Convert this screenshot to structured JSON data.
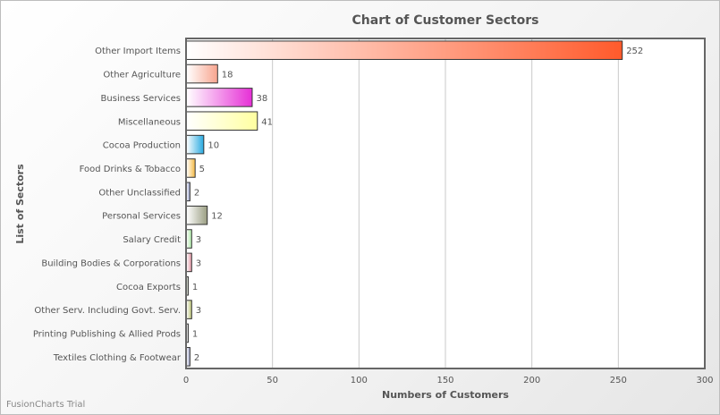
{
  "chart_data": {
    "type": "bar",
    "orientation": "horizontal",
    "title": "Chart of Customer Sectors",
    "xlabel": "Numbers of Customers",
    "ylabel": "List of Sectors",
    "xlim": [
      0,
      300
    ],
    "ticks": [
      0,
      50,
      100,
      150,
      200,
      250,
      300
    ],
    "grid": true,
    "categories": [
      "Other Import Items",
      "Other Agriculture",
      "Business Services",
      "Miscellaneous",
      "Cocoa Production",
      "Food Drinks & Tobacco",
      "Other Unclassified",
      "Personal Services",
      "Salary Credit",
      "Building Bodies & Corporations",
      "Cocoa Exports",
      "Other Serv. Including Govt. Serv.",
      "Printing Publishing & Allied Prods",
      "Textiles Clothing & Footwear"
    ],
    "values": [
      252,
      18,
      38,
      41,
      10,
      5,
      2,
      12,
      3,
      3,
      1,
      3,
      1,
      2
    ],
    "colors": [
      "#FF5A2B",
      "#F8A48E",
      "#E62FD6",
      "#FFFFA0",
      "#27A9E0",
      "#F5B942",
      "#8D96C6",
      "#9A9E82",
      "#A8E6A0",
      "#E0909E",
      "#A6B09A",
      "#B8C070",
      "#C8C8C8",
      "#9AA0C8"
    ]
  },
  "watermark": "FusionCharts Trial"
}
